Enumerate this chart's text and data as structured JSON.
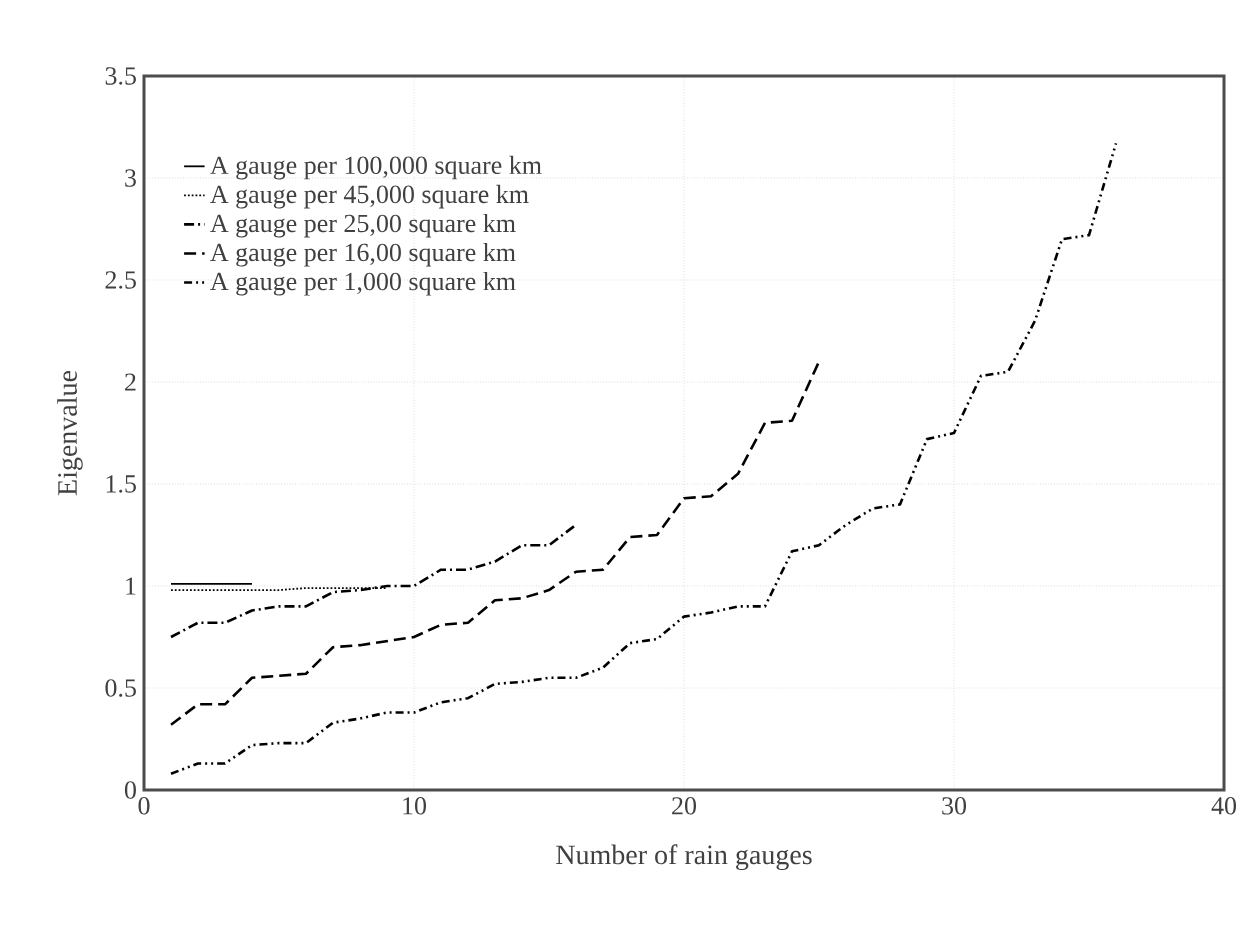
{
  "chart_data": {
    "type": "line",
    "xlabel": "Number of rain gauges",
    "ylabel": "Eigenvalue",
    "xlim": [
      0,
      40
    ],
    "ylim": [
      0,
      3.5
    ],
    "xticks": [
      0,
      10,
      20,
      30,
      40
    ],
    "yticks": [
      0,
      0.5,
      1,
      1.5,
      2,
      2.5,
      3,
      3.5
    ],
    "grid": true,
    "legend": "top left",
    "marker": "none",
    "series": [
      {
        "name": "A gauge per 100,000 square km",
        "color": "#000000",
        "line_style": "solid",
        "x": [
          1,
          2,
          3,
          4
        ],
        "values": [
          1.01,
          1.01,
          1.01,
          1.01
        ]
      },
      {
        "name": "A gauge per 45,000 square km",
        "color": "#000000",
        "line_style": "dotted",
        "x": [
          1,
          2,
          3,
          4,
          5,
          6,
          7,
          8,
          9
        ],
        "values": [
          0.98,
          0.98,
          0.98,
          0.98,
          0.98,
          0.99,
          0.99,
          0.99,
          0.99
        ]
      },
      {
        "name": "A gauge per 25,00 square km",
        "color": "#000000",
        "line_style": "dashdot",
        "x": [
          1,
          2,
          3,
          4,
          5,
          6,
          7,
          8,
          9,
          10,
          11,
          12,
          13,
          14,
          15,
          16
        ],
        "values": [
          0.75,
          0.82,
          0.82,
          0.88,
          0.9,
          0.9,
          0.97,
          0.98,
          1.0,
          1.0,
          1.08,
          1.08,
          1.12,
          1.2,
          1.2,
          1.3
        ]
      },
      {
        "name": "A gauge per 16,00 square km",
        "color": "#000000",
        "line_style": "dashed",
        "x": [
          1,
          2,
          3,
          4,
          5,
          6,
          7,
          8,
          9,
          10,
          11,
          12,
          13,
          14,
          15,
          16,
          17,
          18,
          19,
          20,
          21,
          22,
          23,
          24,
          25
        ],
        "values": [
          0.32,
          0.42,
          0.42,
          0.55,
          0.56,
          0.57,
          0.7,
          0.71,
          0.73,
          0.75,
          0.81,
          0.82,
          0.93,
          0.94,
          0.98,
          1.07,
          1.08,
          1.24,
          1.25,
          1.43,
          1.44,
          1.55,
          1.8,
          1.81,
          2.1
        ]
      },
      {
        "name": "A gauge per 1,000 square km",
        "color": "#000000",
        "line_style": "dashdotdot",
        "x": [
          1,
          2,
          3,
          4,
          5,
          6,
          7,
          8,
          9,
          10,
          11,
          12,
          13,
          14,
          15,
          16,
          17,
          18,
          19,
          20,
          21,
          22,
          23,
          24,
          25,
          26,
          27,
          28,
          29,
          30,
          31,
          32,
          33,
          34,
          35,
          36
        ],
        "values": [
          0.08,
          0.13,
          0.13,
          0.22,
          0.23,
          0.23,
          0.33,
          0.35,
          0.38,
          0.38,
          0.43,
          0.45,
          0.52,
          0.53,
          0.55,
          0.55,
          0.6,
          0.72,
          0.74,
          0.85,
          0.87,
          0.9,
          0.9,
          1.17,
          1.2,
          1.3,
          1.38,
          1.4,
          1.72,
          1.75,
          2.03,
          2.05,
          2.3,
          2.7,
          2.72,
          3.17
        ]
      }
    ]
  }
}
